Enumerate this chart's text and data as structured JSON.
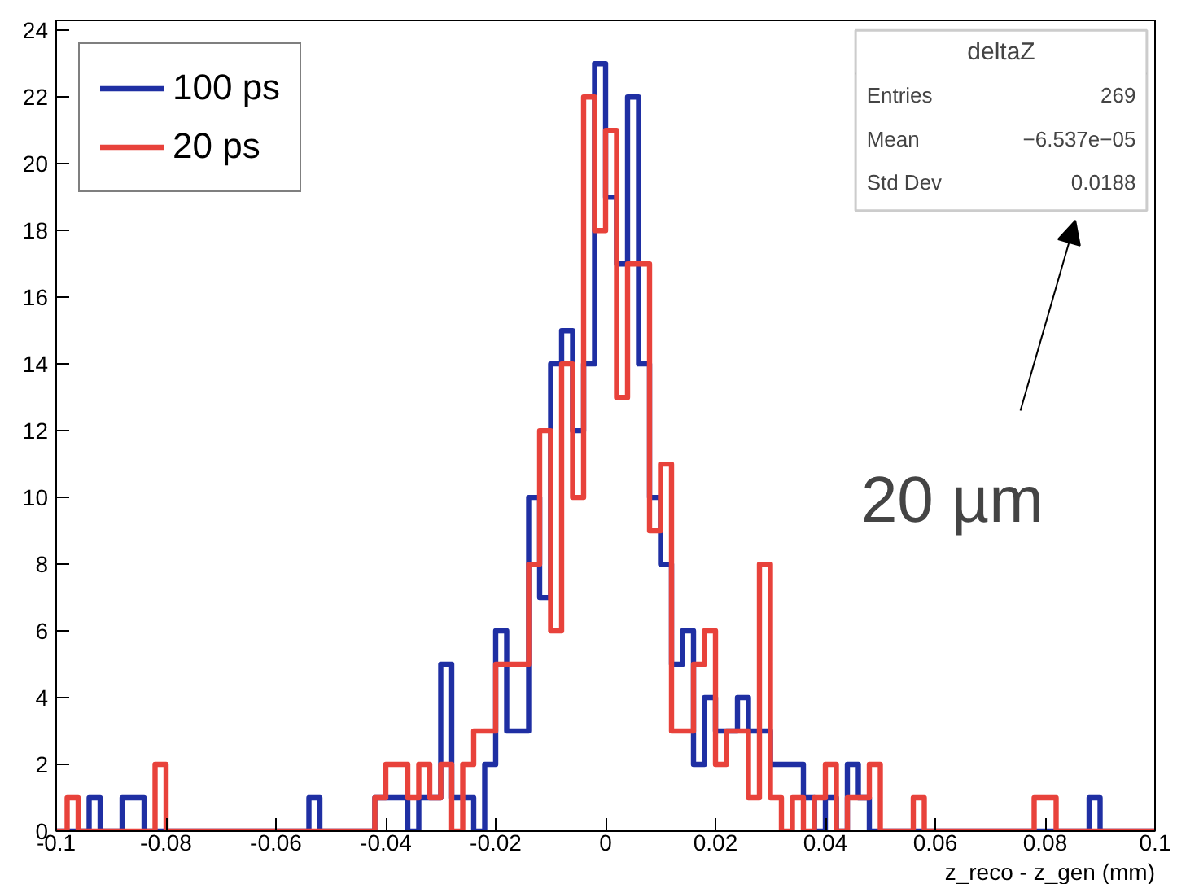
{
  "chart_data": {
    "type": "histogram",
    "xlabel": "z_reco - z_gen (mm)",
    "bins": [
      -0.1,
      -0.098,
      -0.096,
      -0.094,
      -0.092,
      -0.09,
      -0.088,
      -0.086,
      -0.084,
      -0.082,
      -0.08,
      -0.078,
      -0.076,
      -0.074,
      -0.072,
      -0.07,
      -0.068,
      -0.066,
      -0.064,
      -0.062,
      -0.06,
      -0.058,
      -0.056,
      -0.054,
      -0.052,
      -0.05,
      -0.048,
      -0.046,
      -0.044,
      -0.042,
      -0.04,
      -0.038,
      -0.036,
      -0.034,
      -0.032,
      -0.03,
      -0.028,
      -0.026,
      -0.024,
      -0.022,
      -0.02,
      -0.018,
      -0.016,
      -0.014,
      -0.012,
      -0.01,
      -0.008,
      -0.006,
      -0.004,
      -0.002,
      0,
      0.002,
      0.004,
      0.006,
      0.008,
      0.01,
      0.012,
      0.014,
      0.016,
      0.018,
      0.02,
      0.022,
      0.024,
      0.026,
      0.028,
      0.03,
      0.032,
      0.034,
      0.036,
      0.038,
      0.04,
      0.042,
      0.044,
      0.046,
      0.048,
      0.05,
      0.052,
      0.054,
      0.056,
      0.058,
      0.06,
      0.062,
      0.064,
      0.066,
      0.068,
      0.07,
      0.072,
      0.074,
      0.076,
      0.078,
      0.08,
      0.082,
      0.084,
      0.086,
      0.088,
      0.09,
      0.092,
      0.094,
      0.096,
      0.098,
      0.1
    ],
    "series": [
      {
        "name": "100 ps",
        "color": "#1f2fa3",
        "values": [
          0,
          0,
          0,
          1,
          0,
          0,
          1,
          1,
          0,
          0,
          0,
          0,
          0,
          0,
          0,
          0,
          0,
          0,
          0,
          0,
          0,
          0,
          0,
          1,
          0,
          0,
          0,
          0,
          0,
          1,
          1,
          1,
          0,
          1,
          1,
          5,
          1,
          1,
          0,
          2,
          6,
          3,
          3,
          10,
          7,
          14,
          15,
          12,
          14,
          23,
          19,
          17,
          22,
          14,
          10,
          8,
          5,
          6,
          2,
          4,
          3,
          3,
          4,
          3,
          3,
          2,
          2,
          2,
          1,
          0,
          1,
          0,
          2,
          1,
          0,
          0,
          0,
          0,
          0,
          0,
          0,
          0,
          0,
          0,
          0,
          0,
          0,
          0,
          0,
          0,
          0,
          0,
          0,
          0,
          1,
          0,
          0,
          0,
          0,
          0
        ]
      },
      {
        "name": "20 ps",
        "color": "#e8423b",
        "values": [
          0,
          1,
          0,
          0,
          0,
          0,
          0,
          0,
          0,
          2,
          0,
          0,
          0,
          0,
          0,
          0,
          0,
          0,
          0,
          0,
          0,
          0,
          0,
          0,
          0,
          0,
          0,
          0,
          0,
          1,
          2,
          2,
          1,
          2,
          1,
          2,
          0,
          2,
          3,
          3,
          5,
          5,
          5,
          8,
          12,
          6,
          14,
          10,
          22,
          18,
          21,
          13,
          17,
          17,
          9,
          11,
          3,
          3,
          5,
          6,
          2,
          3,
          3,
          1,
          8,
          1,
          0,
          1,
          0,
          1,
          2,
          0,
          1,
          1,
          2,
          0,
          0,
          0,
          1,
          0,
          0,
          0,
          0,
          0,
          0,
          0,
          0,
          0,
          0,
          1,
          1,
          0,
          0,
          0,
          0,
          0,
          0,
          0,
          0,
          0
        ]
      }
    ],
    "xlim": [
      -0.1,
      0.1
    ],
    "ylim": [
      0,
      24.3
    ],
    "xticks": [
      -0.1,
      -0.08,
      -0.06,
      -0.04,
      -0.02,
      0,
      0.02,
      0.04,
      0.06,
      0.08,
      0.1
    ],
    "yticks": [
      0,
      2,
      4,
      6,
      8,
      10,
      12,
      14,
      16,
      18,
      20,
      22,
      24
    ],
    "grid": false,
    "legend": "top left",
    "line_style": "solid",
    "annotations": [
      "deltaZ",
      "Entries",
      "269",
      "Mean",
      "−6.537e−05",
      "Std Dev",
      "0.0188",
      "20 µm"
    ]
  }
}
